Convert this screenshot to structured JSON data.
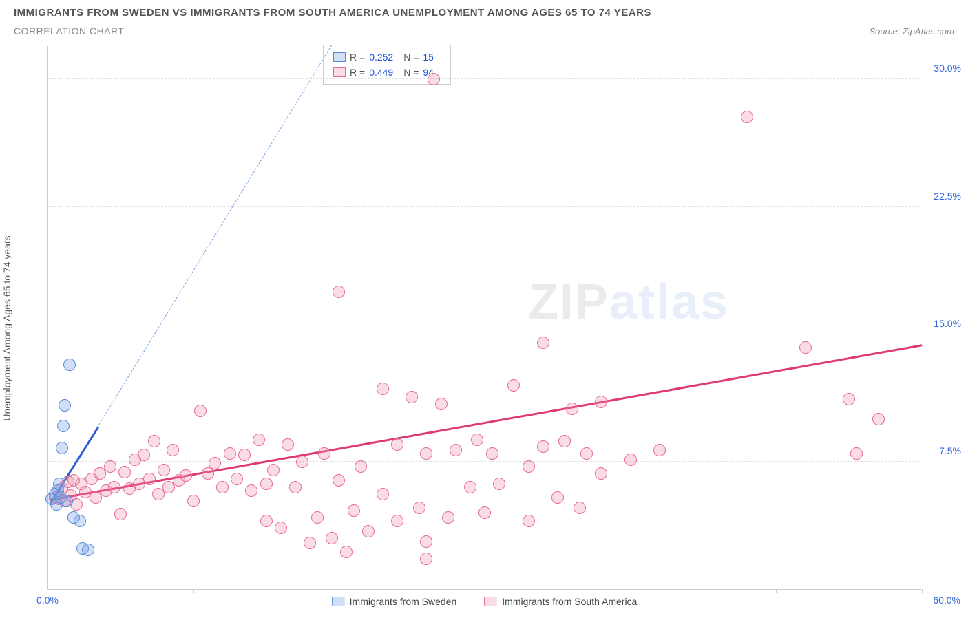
{
  "header": {
    "title": "IMMIGRANTS FROM SWEDEN VS IMMIGRANTS FROM SOUTH AMERICA UNEMPLOYMENT AMONG AGES 65 TO 74 YEARS",
    "subtitle": "CORRELATION CHART",
    "source_prefix": "Source: ",
    "source_name": "ZipAtlas.com"
  },
  "axes": {
    "y_label": "Unemployment Among Ages 65 to 74 years",
    "x_min": 0,
    "x_max": 60,
    "y_min": 0,
    "y_max": 32,
    "y_ticks": [
      7.5,
      15.0,
      22.5,
      30.0
    ],
    "y_tick_labels": [
      "7.5%",
      "15.0%",
      "22.5%",
      "30.0%"
    ],
    "x_ticks": [
      0,
      10,
      20,
      30,
      40,
      50,
      60
    ],
    "x_left_label": "0.0%",
    "x_right_label": "60.0%"
  },
  "colors": {
    "sweden_fill": "rgba(120,160,230,0.35)",
    "sweden_stroke": "#5a8ad6",
    "sa_fill": "rgba(240,140,170,0.30)",
    "sa_stroke": "#e86a94",
    "sweden_line": "#2a5fd0",
    "sweden_dash": "#7aa0e0",
    "sa_line": "#e03a72",
    "tick_label": "#3366dd"
  },
  "marker_radius": 9,
  "stats_legend": {
    "rows": [
      {
        "series": "sweden",
        "r_label": "R =",
        "r_value": "0.252",
        "n_label": "N =",
        "n_value": "15"
      },
      {
        "series": "sa",
        "r_label": "R =",
        "r_value": "0.449",
        "n_label": "N =",
        "n_value": "94"
      }
    ]
  },
  "bottom_legend": {
    "items": [
      {
        "series": "sweden",
        "label": "Immigrants from Sweden"
      },
      {
        "series": "sa",
        "label": "Immigrants from South America"
      }
    ]
  },
  "watermark": {
    "part1": "ZIP",
    "part2": "atlas"
  },
  "trend_lines": {
    "sweden_solid": {
      "x1": 0.2,
      "y1": 5.0,
      "x2": 3.5,
      "y2": 9.5,
      "width": 3
    },
    "sweden_dash": {
      "x1": 0.2,
      "y1": 5.0,
      "x2": 19.5,
      "y2": 32.0,
      "width": 1
    },
    "sa": {
      "x1": 0.2,
      "y1": 5.2,
      "x2": 60.0,
      "y2": 14.3,
      "width": 3
    }
  },
  "series": {
    "sweden": [
      [
        0.3,
        5.3
      ],
      [
        0.5,
        5.6
      ],
      [
        0.6,
        5.0
      ],
      [
        0.7,
        5.8
      ],
      [
        0.8,
        6.2
      ],
      [
        0.9,
        5.4
      ],
      [
        1.0,
        8.3
      ],
      [
        1.1,
        9.6
      ],
      [
        1.2,
        10.8
      ],
      [
        1.5,
        13.2
      ],
      [
        2.2,
        4.0
      ],
      [
        1.8,
        4.2
      ],
      [
        2.4,
        2.4
      ],
      [
        2.8,
        2.3
      ],
      [
        1.3,
        5.2
      ]
    ],
    "sa": [
      [
        0.5,
        5.4
      ],
      [
        0.8,
        5.3
      ],
      [
        1.0,
        5.9
      ],
      [
        1.2,
        5.2
      ],
      [
        1.4,
        6.3
      ],
      [
        1.6,
        5.5
      ],
      [
        1.8,
        6.4
      ],
      [
        2.0,
        5.0
      ],
      [
        2.3,
        6.2
      ],
      [
        2.6,
        5.7
      ],
      [
        3.0,
        6.5
      ],
      [
        3.3,
        5.4
      ],
      [
        3.6,
        6.8
      ],
      [
        4.0,
        5.8
      ],
      [
        4.3,
        7.2
      ],
      [
        4.6,
        6.0
      ],
      [
        5.0,
        4.4
      ],
      [
        5.3,
        6.9
      ],
      [
        5.6,
        5.9
      ],
      [
        6.0,
        7.6
      ],
      [
        6.3,
        6.2
      ],
      [
        6.6,
        7.9
      ],
      [
        7.0,
        6.5
      ],
      [
        7.3,
        8.7
      ],
      [
        7.6,
        5.6
      ],
      [
        8.0,
        7.0
      ],
      [
        8.3,
        6.0
      ],
      [
        8.6,
        8.2
      ],
      [
        9.0,
        6.4
      ],
      [
        9.5,
        6.7
      ],
      [
        10.0,
        5.2
      ],
      [
        10.5,
        10.5
      ],
      [
        11.0,
        6.8
      ],
      [
        11.5,
        7.4
      ],
      [
        12.0,
        6.0
      ],
      [
        12.5,
        8.0
      ],
      [
        13.0,
        6.5
      ],
      [
        13.5,
        7.9
      ],
      [
        14.0,
        5.8
      ],
      [
        14.5,
        8.8
      ],
      [
        15.0,
        6.2
      ],
      [
        15.0,
        4.0
      ],
      [
        15.5,
        7.0
      ],
      [
        16.0,
        3.6
      ],
      [
        16.5,
        8.5
      ],
      [
        17.0,
        6.0
      ],
      [
        17.5,
        7.5
      ],
      [
        18.0,
        2.7
      ],
      [
        18.5,
        4.2
      ],
      [
        19.0,
        8.0
      ],
      [
        19.5,
        3.0
      ],
      [
        20.0,
        6.4
      ],
      [
        20.0,
        17.5
      ],
      [
        20.5,
        2.2
      ],
      [
        21.0,
        4.6
      ],
      [
        21.5,
        7.2
      ],
      [
        22.0,
        3.4
      ],
      [
        23.0,
        5.6
      ],
      [
        23.0,
        11.8
      ],
      [
        24.0,
        4.0
      ],
      [
        24.0,
        8.5
      ],
      [
        25.0,
        11.3
      ],
      [
        25.5,
        4.8
      ],
      [
        26.0,
        8.0
      ],
      [
        26.0,
        1.8
      ],
      [
        26.5,
        30.0
      ],
      [
        27.0,
        10.9
      ],
      [
        27.5,
        4.2
      ],
      [
        28.0,
        8.2
      ],
      [
        29.0,
        6.0
      ],
      [
        29.5,
        8.8
      ],
      [
        30.0,
        4.5
      ],
      [
        30.5,
        8.0
      ],
      [
        31.0,
        6.2
      ],
      [
        32.0,
        12.0
      ],
      [
        33.0,
        7.2
      ],
      [
        33.0,
        4.0
      ],
      [
        34.0,
        8.4
      ],
      [
        34.0,
        14.5
      ],
      [
        35.0,
        5.4
      ],
      [
        35.5,
        8.7
      ],
      [
        36.0,
        10.6
      ],
      [
        36.5,
        4.8
      ],
      [
        37.0,
        8.0
      ],
      [
        38.0,
        6.8
      ],
      [
        38.0,
        11.0
      ],
      [
        40.0,
        7.6
      ],
      [
        42.0,
        8.2
      ],
      [
        48.0,
        27.8
      ],
      [
        52.0,
        14.2
      ],
      [
        55.0,
        11.2
      ],
      [
        55.5,
        8.0
      ],
      [
        57.0,
        10.0
      ],
      [
        26.0,
        2.8
      ]
    ]
  }
}
